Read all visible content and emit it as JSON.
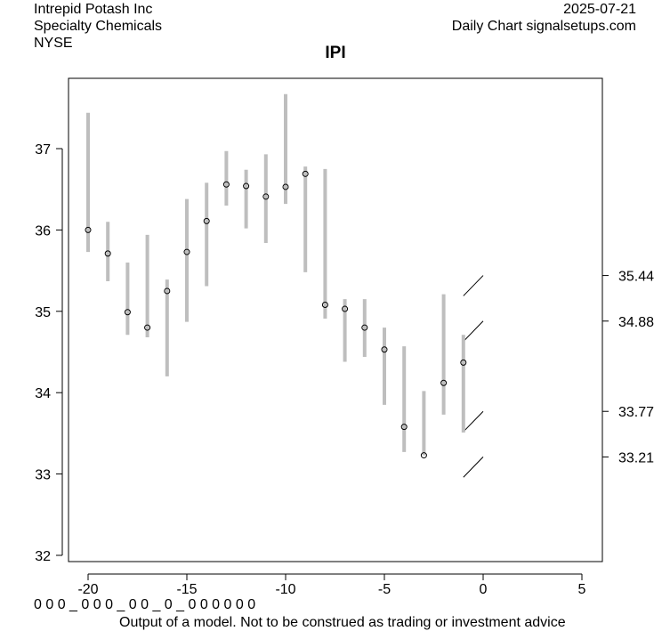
{
  "header": {
    "company": "Intrepid Potash Inc",
    "sector": "Specialty Chemicals",
    "exchange": "NYSE",
    "date": "2025-07-21",
    "source": "Daily Chart signalsetups.com"
  },
  "footer": {
    "signal_row": "0 0 0 _ 0 0 0 _ 0 0 _ 0 _ 0 0 0 0 0 0",
    "disclaimer": "Output of a model. Not to be construed as trading or investment advice"
  },
  "chart_data": {
    "type": "range-bar",
    "title": "IPI",
    "xlabel": "",
    "ylabel": "",
    "xlim": [
      -21,
      6
    ],
    "ylim": [
      31.95,
      37.9
    ],
    "x_ticks": [
      -20,
      -15,
      -10,
      -5,
      0,
      5
    ],
    "y_ticks": [
      32,
      33,
      34,
      35,
      36,
      37
    ],
    "grid": false,
    "bar_color": "#bebebe",
    "x": [
      -20,
      -19,
      -18,
      -17,
      -16,
      -15,
      -14,
      -13,
      -12,
      -11,
      -10,
      -9,
      -8,
      -7,
      -6,
      -5,
      -4,
      -3,
      -2,
      -1
    ],
    "high": [
      37.44,
      36.1,
      35.6,
      35.94,
      35.39,
      36.38,
      36.58,
      36.97,
      36.74,
      36.93,
      37.67,
      36.78,
      36.75,
      35.15,
      35.15,
      34.8,
      34.57,
      34.02,
      35.21,
      34.71
    ],
    "low": [
      35.73,
      35.37,
      34.71,
      34.68,
      34.2,
      34.87,
      35.31,
      36.3,
      36.02,
      35.84,
      36.32,
      35.48,
      34.91,
      34.38,
      34.44,
      33.85,
      33.27,
      33.23,
      33.73,
      33.51
    ],
    "close": [
      36.0,
      35.71,
      34.99,
      34.8,
      35.25,
      35.73,
      36.11,
      36.56,
      36.54,
      36.41,
      36.53,
      36.69,
      35.08,
      35.03,
      34.8,
      34.53,
      33.58,
      33.23,
      34.12,
      34.37
    ],
    "levels": [
      35.44,
      34.88,
      33.77,
      33.21
    ],
    "level_labels": [
      "35.44",
      "34.88",
      "33.77",
      "33.21"
    ]
  }
}
